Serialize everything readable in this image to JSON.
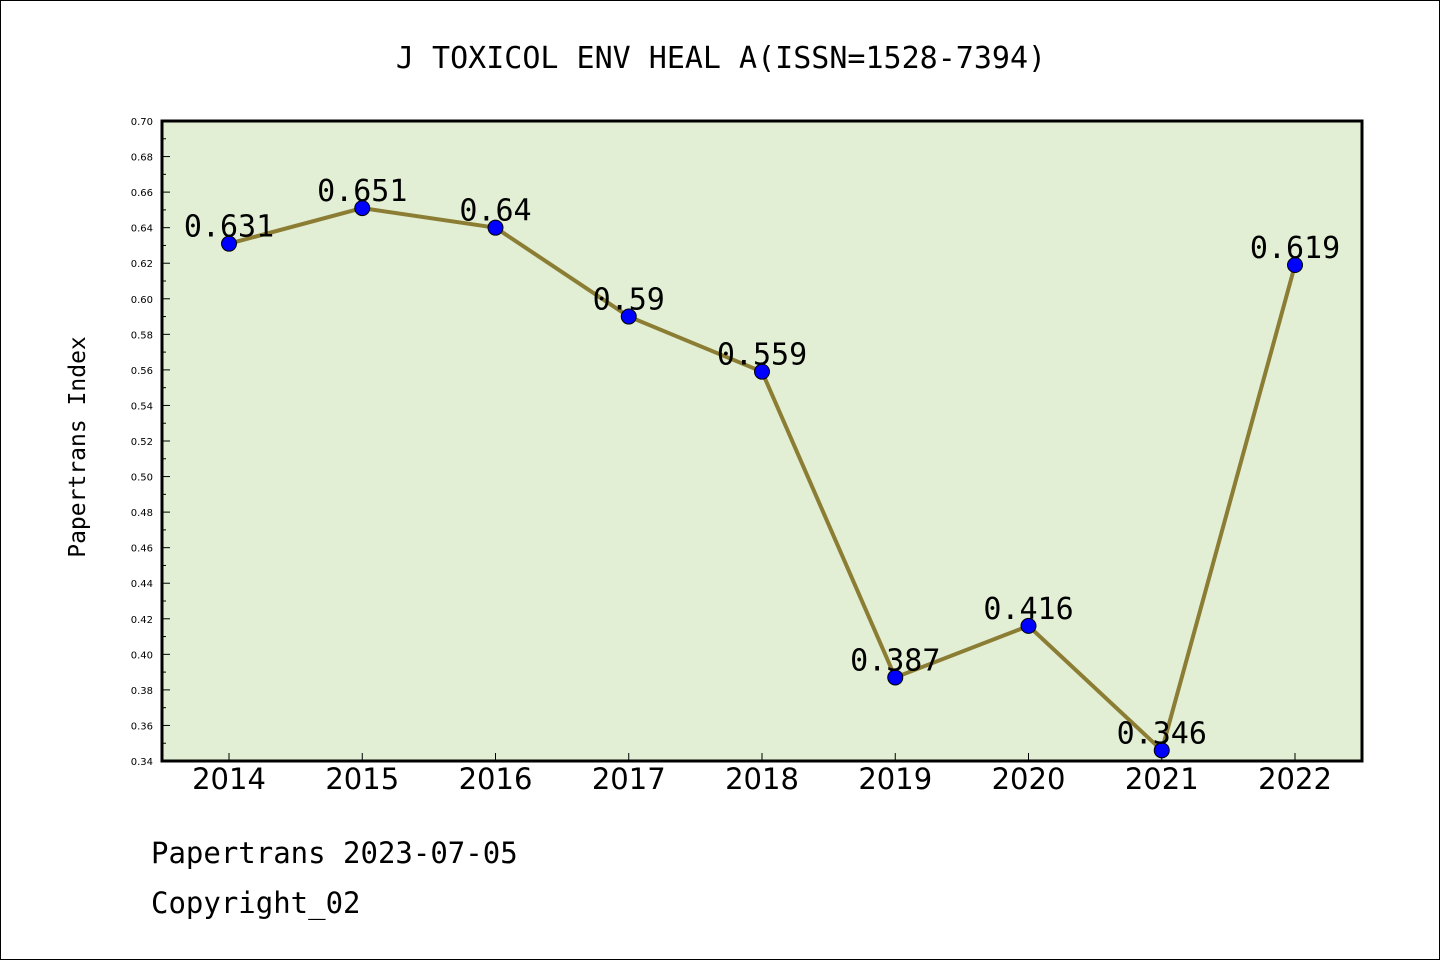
{
  "chart_data": {
    "type": "line",
    "title": "J TOXICOL ENV HEAL A(ISSN=1528-7394)",
    "xlabel": "",
    "ylabel": "Papertrans Index",
    "categories": [
      "2014",
      "2015",
      "2016",
      "2017",
      "2018",
      "2019",
      "2020",
      "2021",
      "2022"
    ],
    "series": [
      {
        "values": [
          0.631,
          0.651,
          0.64,
          0.59,
          0.559,
          0.387,
          0.416,
          0.346,
          0.619
        ],
        "labels": [
          "0.631",
          "0.651",
          "0.64",
          "0.59",
          "0.559",
          "0.387",
          "0.416",
          "0.346",
          "0.619"
        ]
      }
    ],
    "ylim": [
      0.34,
      0.7
    ],
    "yticks": [
      "0.34",
      "0.36",
      "0.38",
      "0.40",
      "0.42",
      "0.44",
      "0.46",
      "0.48",
      "0.50",
      "0.52",
      "0.54",
      "0.56",
      "0.58",
      "0.60",
      "0.62",
      "0.64",
      "0.66",
      "0.68",
      "0.70"
    ],
    "grid": false,
    "legend": "none",
    "colors": {
      "plot_background": "#e2efd4",
      "line": "#8b7d33",
      "marker": "#0000ff",
      "axis": "#000000"
    }
  },
  "footer": {
    "source": "Papertrans 2023-07-05",
    "copyright": "Copyright_02"
  }
}
